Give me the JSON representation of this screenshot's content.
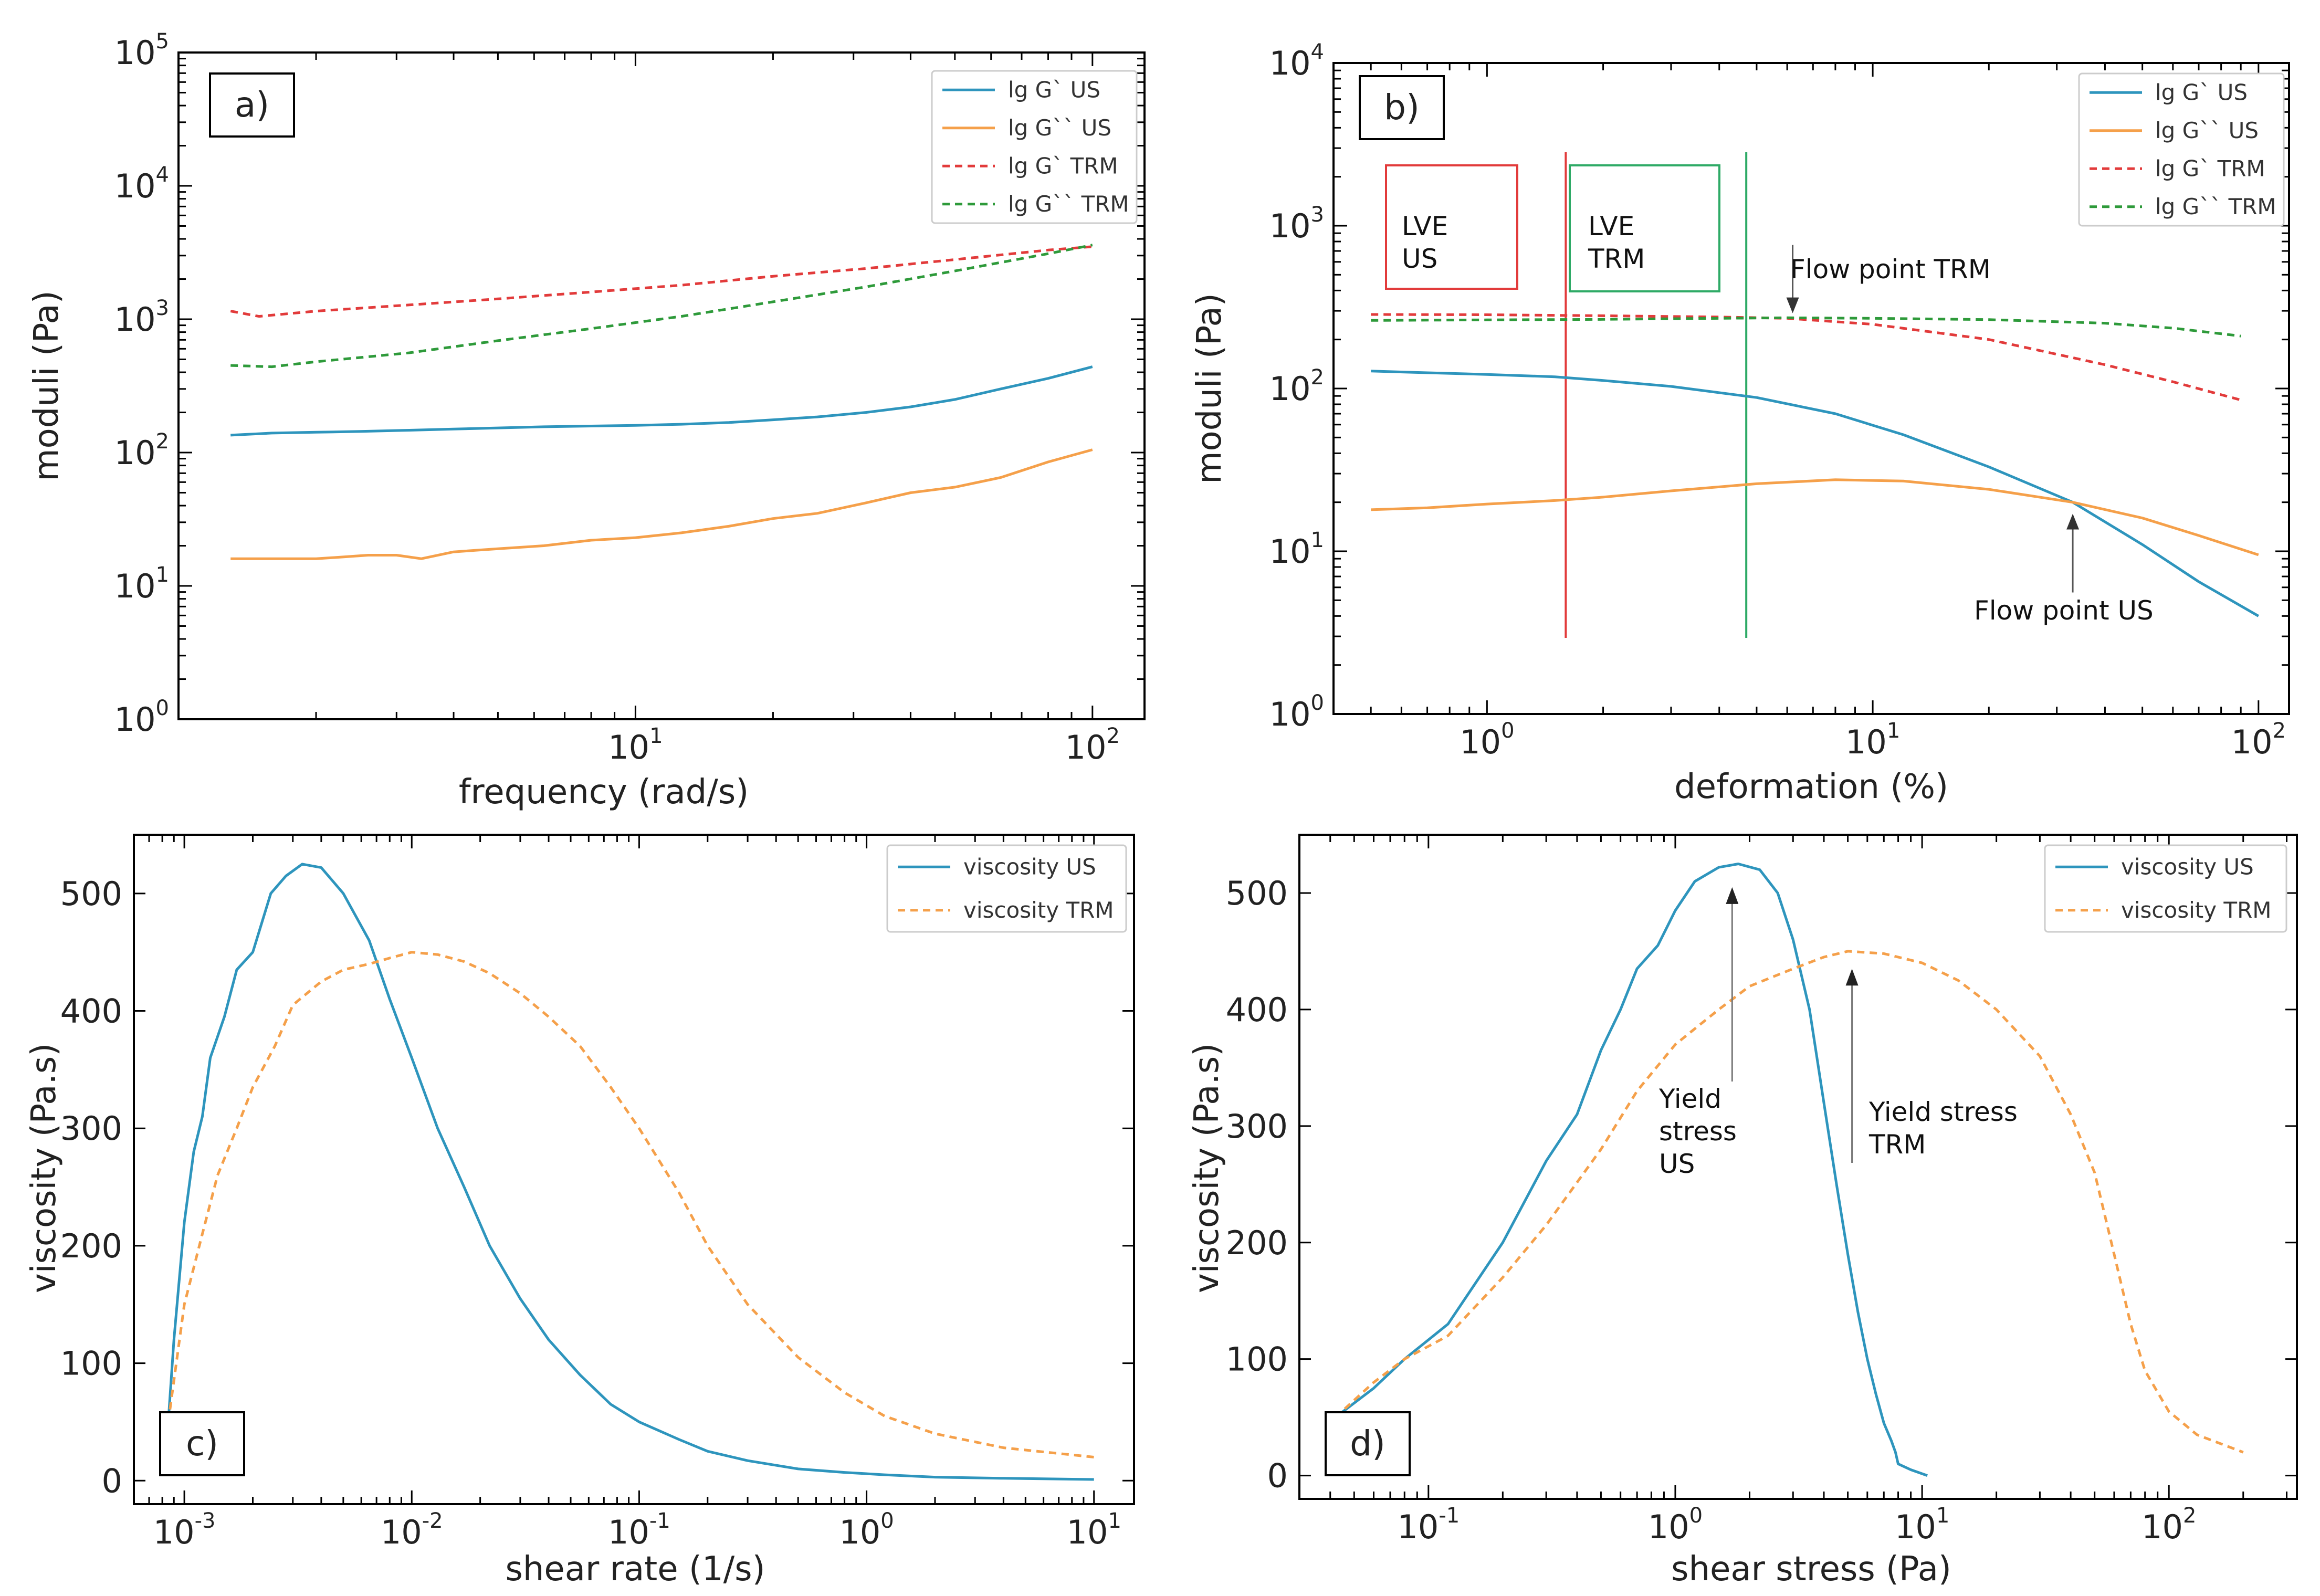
{
  "chart_data": [
    {
      "id": "a",
      "type": "line",
      "panel_label": "a)",
      "xlabel": "frequency (rad/s)",
      "ylabel": "moduli (Pa)",
      "xscale": "log",
      "yscale": "log",
      "xlim": [
        1.0,
        130
      ],
      "ylim": [
        1,
        100000
      ],
      "y_ticks": [
        1,
        10,
        100,
        1000,
        10000,
        100000
      ],
      "x_ticks": [
        10,
        100
      ],
      "legend": "top-right",
      "series": [
        {
          "name": "lg G` US",
          "color": "#2e95bd",
          "style": "solid",
          "x": [
            1.3,
            1.6,
            2.0,
            2.5,
            3.2,
            4,
            5,
            6.3,
            8,
            10,
            12.6,
            16,
            20,
            25,
            32,
            40,
            50,
            63,
            80,
            100
          ],
          "y": [
            135,
            140,
            142,
            144,
            147,
            150,
            153,
            156,
            158,
            160,
            163,
            168,
            176,
            185,
            200,
            220,
            250,
            300,
            360,
            440
          ]
        },
        {
          "name": "lg G`` US",
          "color": "#f5a04a",
          "style": "solid",
          "x": [
            1.3,
            1.6,
            2.0,
            2.3,
            2.6,
            3.0,
            3.4,
            4,
            5,
            6.3,
            8,
            10,
            12.6,
            16,
            20,
            25,
            32,
            40,
            50,
            63,
            80,
            100
          ],
          "y": [
            16,
            16,
            16,
            16.5,
            17,
            17,
            16,
            18,
            19,
            20,
            22,
            23,
            25,
            28,
            32,
            35,
            42,
            50,
            55,
            65,
            85,
            105
          ]
        },
        {
          "name": "lg G` TRM",
          "color": "#e23b3b",
          "style": "dashed",
          "x": [
            1.3,
            1.5,
            2,
            3.2,
            5,
            8,
            12.6,
            20,
            32,
            50,
            80,
            100
          ],
          "y": [
            1150,
            1050,
            1150,
            1280,
            1420,
            1600,
            1800,
            2100,
            2400,
            2800,
            3300,
            3500
          ]
        },
        {
          "name": "lg G`` TRM",
          "color": "#2e9a3a",
          "style": "dashed",
          "x": [
            1.3,
            1.6,
            2,
            3.2,
            5,
            8,
            12.6,
            20,
            32,
            50,
            80,
            100
          ],
          "y": [
            450,
            440,
            480,
            560,
            690,
            850,
            1050,
            1350,
            1750,
            2300,
            3100,
            3600
          ]
        }
      ]
    },
    {
      "id": "b",
      "type": "line",
      "panel_label": "b)",
      "xlabel": "deformation (%)",
      "ylabel": "moduli (Pa)",
      "xscale": "log",
      "yscale": "log",
      "xlim": [
        0.4,
        120
      ],
      "ylim": [
        1,
        10000
      ],
      "y_ticks": [
        1,
        10,
        100,
        1000,
        10000
      ],
      "x_ticks": [
        1,
        10,
        100
      ],
      "legend": "top-right",
      "series": [
        {
          "name": "lg G` US",
          "color": "#2e95bd",
          "style": "solid",
          "x": [
            0.5,
            0.7,
            1,
            1.5,
            2,
            3,
            5,
            8,
            12,
            20,
            33,
            50,
            70,
            100
          ],
          "y": [
            128,
            125,
            122,
            118,
            112,
            103,
            88,
            70,
            52,
            33,
            20,
            11,
            6.5,
            4
          ]
        },
        {
          "name": "lg G`` US",
          "color": "#f5a04a",
          "style": "solid",
          "x": [
            0.5,
            0.7,
            1,
            1.5,
            2,
            3,
            5,
            8,
            12,
            20,
            33,
            50,
            70,
            100
          ],
          "y": [
            18,
            18.5,
            19.5,
            20.5,
            21.5,
            23.5,
            26,
            27.5,
            27,
            24,
            20,
            16,
            12.5,
            9.5
          ]
        },
        {
          "name": "lg G` TRM",
          "color": "#e23b3b",
          "style": "dashed",
          "x": [
            0.5,
            1,
            2,
            4,
            6,
            10,
            20,
            40,
            60,
            90
          ],
          "y": [
            285,
            284,
            280,
            275,
            270,
            248,
            200,
            140,
            110,
            85
          ]
        },
        {
          "name": "lg G`` TRM",
          "color": "#2e9a3a",
          "style": "dashed",
          "x": [
            0.5,
            1,
            2,
            4,
            6,
            10,
            20,
            40,
            60,
            90
          ],
          "y": [
            262,
            264,
            266,
            270,
            272,
            270,
            265,
            252,
            235,
            210
          ]
        }
      ],
      "vertical_lines": [
        {
          "x": 1.6,
          "color": "#e23b3b"
        },
        {
          "x": 4.7,
          "color": "#2eaa66"
        }
      ],
      "annotations": [
        {
          "lines": [
            "LVE",
            "US"
          ],
          "color": "#e23b3b"
        },
        {
          "lines": [
            "LVE",
            "TRM"
          ],
          "color": "#2eaa66"
        },
        {
          "text": "Flow point TRM",
          "arrow_x": 6.2,
          "arrow_y": 290
        },
        {
          "text": "Flow point US",
          "arrow_x": 33,
          "arrow_y": 17
        }
      ]
    },
    {
      "id": "c",
      "type": "line",
      "panel_label": "c)",
      "xlabel": "shear rate (1/s)",
      "ylabel": "viscosity (Pa.s)",
      "xscale": "log",
      "yscale": "linear",
      "xlim": [
        0.0006,
        15
      ],
      "ylim": [
        -20,
        550
      ],
      "y_ticks": [
        0,
        100,
        200,
        300,
        400,
        500
      ],
      "x_ticks": [
        0.001,
        0.01,
        0.1,
        1,
        10
      ],
      "legend": "top-right",
      "series": [
        {
          "name": "viscosity US",
          "color": "#2e95bd",
          "style": "solid",
          "x": [
            0.00085,
            0.0009,
            0.001,
            0.0011,
            0.0012,
            0.0013,
            0.0015,
            0.0017,
            0.002,
            0.0024,
            0.0028,
            0.0033,
            0.004,
            0.005,
            0.0065,
            0.008,
            0.01,
            0.013,
            0.017,
            0.022,
            0.03,
            0.04,
            0.055,
            0.075,
            0.1,
            0.15,
            0.2,
            0.3,
            0.5,
            0.8,
            1.2,
            2,
            4,
            10
          ],
          "y": [
            50,
            120,
            220,
            280,
            310,
            360,
            395,
            435,
            450,
            500,
            515,
            525,
            522,
            500,
            460,
            410,
            360,
            300,
            250,
            200,
            155,
            120,
            90,
            65,
            50,
            35,
            25,
            17,
            10,
            7,
            5,
            3,
            2,
            1
          ]
        },
        {
          "name": "viscosity TRM",
          "color": "#f5a04a",
          "style": "dashed",
          "x": [
            0.00085,
            0.001,
            0.0012,
            0.0014,
            0.0017,
            0.002,
            0.0025,
            0.003,
            0.004,
            0.005,
            0.0065,
            0.008,
            0.01,
            0.013,
            0.017,
            0.022,
            0.03,
            0.04,
            0.055,
            0.075,
            0.1,
            0.15,
            0.2,
            0.3,
            0.5,
            0.8,
            1.2,
            2,
            4,
            10
          ],
          "y": [
            50,
            150,
            210,
            260,
            300,
            335,
            370,
            405,
            425,
            435,
            440,
            445,
            450,
            448,
            442,
            432,
            415,
            395,
            370,
            335,
            300,
            245,
            200,
            150,
            105,
            75,
            55,
            40,
            28,
            20
          ]
        }
      ]
    },
    {
      "id": "d",
      "type": "line",
      "panel_label": "d)",
      "xlabel": "shear stress (Pa)",
      "ylabel": "viscosity (Pa.s)",
      "xscale": "log",
      "yscale": "linear",
      "xlim": [
        0.03,
        330
      ],
      "ylim": [
        -20,
        550
      ],
      "y_ticks": [
        0,
        100,
        200,
        300,
        400,
        500
      ],
      "x_ticks": [
        0.1,
        1,
        10,
        100
      ],
      "legend": "top-right",
      "series": [
        {
          "name": "viscosity US",
          "color": "#2e95bd",
          "style": "solid",
          "x": [
            0.042,
            0.06,
            0.08,
            0.12,
            0.2,
            0.3,
            0.4,
            0.5,
            0.6,
            0.7,
            0.85,
            1.0,
            1.2,
            1.5,
            1.8,
            2.2,
            2.6,
            3.0,
            3.5,
            4.0,
            4.5,
            5.0,
            5.5,
            6.0,
            6.5,
            7.0,
            7.5,
            7.8,
            8.0,
            9.0,
            10.5
          ],
          "y": [
            50,
            75,
            100,
            130,
            200,
            270,
            310,
            365,
            400,
            435,
            455,
            485,
            510,
            522,
            525,
            520,
            500,
            460,
            400,
            320,
            250,
            190,
            140,
            100,
            70,
            45,
            30,
            20,
            10,
            5,
            0
          ]
        },
        {
          "name": "viscosity TRM",
          "color": "#f5a04a",
          "style": "dashed",
          "x": [
            0.042,
            0.06,
            0.08,
            0.12,
            0.2,
            0.3,
            0.5,
            0.7,
            1.0,
            1.5,
            2.0,
            3.0,
            4.0,
            5.0,
            7.0,
            10,
            14,
            20,
            30,
            40,
            50,
            60,
            70,
            80,
            100,
            130,
            200
          ],
          "y": [
            50,
            80,
            100,
            120,
            170,
            215,
            280,
            330,
            370,
            400,
            420,
            435,
            445,
            450,
            448,
            440,
            425,
            400,
            360,
            310,
            260,
            190,
            130,
            90,
            55,
            35,
            20
          ]
        }
      ],
      "annotations": [
        {
          "lines": [
            "Yield",
            "stress",
            "US"
          ],
          "arrow_x": 1.7,
          "arrow_y": 505
        },
        {
          "lines": [
            "Yield stress",
            "TRM"
          ],
          "arrow_x": 5.2,
          "arrow_y": 435
        }
      ]
    }
  ]
}
